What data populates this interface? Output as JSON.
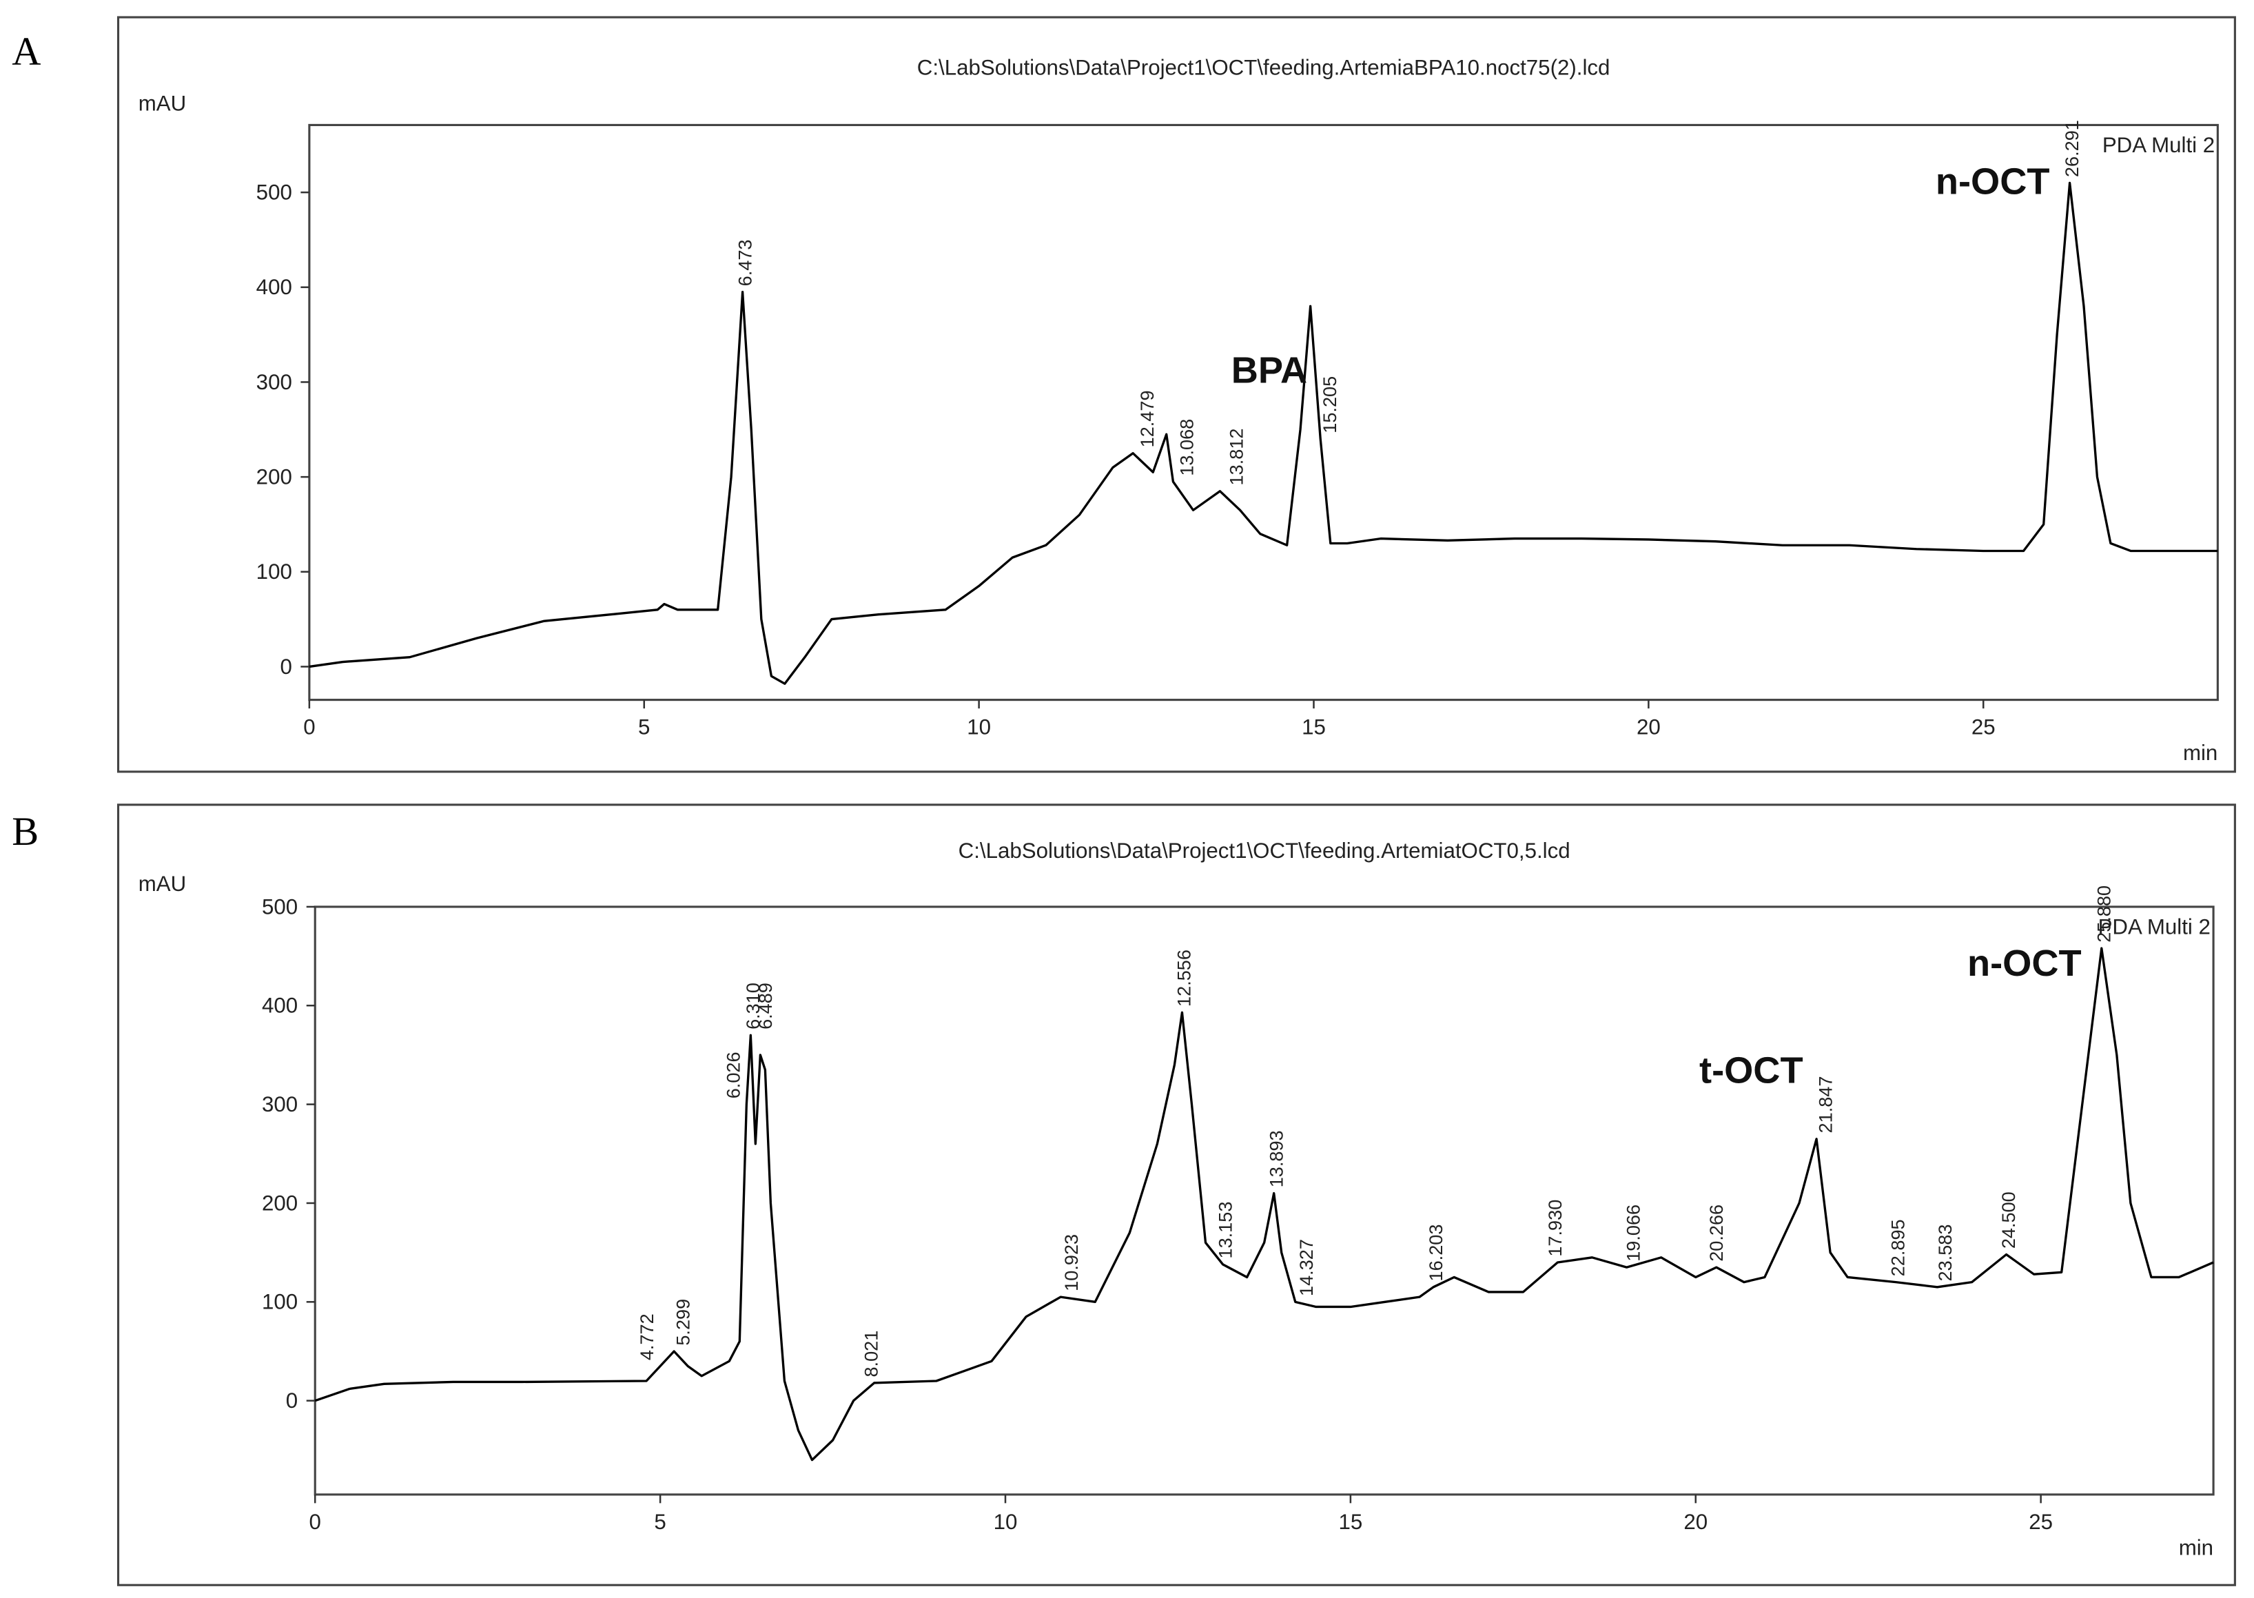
{
  "chart_data": [
    {
      "type": "line",
      "panel": "A",
      "title": "C:\\LabSolutions\\Data\\Project1\\OCT\\feeding.ArtemiaBPA10.noct75(2).lcd",
      "y_label": "mAU",
      "x_label": "min",
      "detector": "PDA Multi 2",
      "color": "#000000",
      "xlim": [
        0,
        28.5
      ],
      "ylim": [
        -35,
        571
      ],
      "xticks": [
        0,
        5,
        10,
        15,
        20,
        25
      ],
      "yticks": [
        0,
        100,
        200,
        300,
        400,
        500
      ],
      "x": [
        0,
        0.5,
        1.5,
        2.5,
        3.5,
        4.5,
        5.2,
        5.3,
        5.5,
        6.1,
        6.3,
        6.47,
        6.6,
        6.75,
        6.9,
        7.1,
        7.4,
        7.8,
        8.5,
        9.5,
        10,
        10.5,
        11,
        11.5,
        12,
        12.3,
        12.6,
        12.8,
        12.9,
        13.2,
        13.6,
        13.9,
        14.2,
        14.6,
        14.8,
        14.95,
        15.1,
        15.25,
        15.5,
        16,
        17,
        18,
        19,
        20,
        21,
        22,
        23,
        24,
        25,
        25.6,
        25.9,
        26.1,
        26.29,
        26.5,
        26.7,
        26.9,
        27.2,
        28.5
      ],
      "values": [
        0,
        5,
        10,
        30,
        48,
        55,
        60,
        66,
        60,
        60,
        200,
        395,
        250,
        50,
        -10,
        -18,
        10,
        50,
        55,
        60,
        85,
        115,
        128,
        160,
        210,
        225,
        205,
        245,
        195,
        165,
        185,
        165,
        140,
        128,
        250,
        380,
        240,
        130,
        130,
        135,
        133,
        135,
        135,
        134,
        132,
        128,
        128,
        124,
        122,
        122,
        150,
        350,
        510,
        380,
        200,
        130,
        122,
        122
      ],
      "peaks": [
        {
          "value": 6.473
        },
        {
          "value": 12.479
        },
        {
          "value": 13.068
        },
        {
          "value": 13.812
        },
        {
          "value": 15.205,
          "compound": "BPA"
        },
        {
          "value": 26.291,
          "compound": "n-OCT"
        }
      ]
    },
    {
      "type": "line",
      "panel": "B",
      "title": "C:\\LabSolutions\\Data\\Project1\\OCT\\feeding.ArtemiatOCT0,5.lcd",
      "y_label": "mAU",
      "x_label": "min",
      "detector": "PDA Multi 2",
      "color": "#000000",
      "xlim": [
        0,
        27.5
      ],
      "ylim": [
        -95,
        500
      ],
      "xticks": [
        0,
        5,
        10,
        15,
        20,
        25
      ],
      "yticks": [
        0,
        100,
        200,
        300,
        400,
        500
      ],
      "x": [
        0,
        0.5,
        1,
        2,
        3,
        4.8,
        5.0,
        5.2,
        5.4,
        5.6,
        6.0,
        6.15,
        6.25,
        6.31,
        6.38,
        6.45,
        6.52,
        6.6,
        6.8,
        7.0,
        7.2,
        7.5,
        7.8,
        8.1,
        9,
        9.8,
        10.3,
        10.8,
        11.3,
        11.8,
        12.2,
        12.45,
        12.56,
        12.7,
        12.9,
        13.15,
        13.5,
        13.75,
        13.89,
        14.0,
        14.2,
        14.5,
        15,
        15.5,
        16,
        16.2,
        16.5,
        17,
        17.5,
        18,
        18.5,
        19,
        19.5,
        20,
        20.3,
        20.7,
        21.0,
        21.5,
        21.75,
        21.95,
        22.2,
        22.9,
        23.5,
        24,
        24.5,
        24.9,
        25.3,
        25.6,
        25.88,
        26.1,
        26.3,
        26.6,
        27,
        27.5
      ],
      "values": [
        0,
        12,
        17,
        19,
        19,
        20,
        35,
        50,
        35,
        25,
        40,
        60,
        300,
        370,
        260,
        350,
        335,
        200,
        20,
        -30,
        -60,
        -40,
        0,
        18,
        20,
        40,
        85,
        105,
        100,
        170,
        260,
        340,
        393,
        300,
        160,
        138,
        125,
        160,
        210,
        150,
        100,
        95,
        95,
        100,
        105,
        115,
        125,
        110,
        110,
        140,
        145,
        135,
        145,
        125,
        135,
        120,
        125,
        200,
        265,
        150,
        125,
        120,
        115,
        120,
        148,
        128,
        130,
        300,
        458,
        350,
        200,
        125,
        125,
        140
      ],
      "peaks": [
        {
          "value": 4.772
        },
        {
          "value": 5.299
        },
        {
          "value": 6.026
        },
        {
          "value": 6.31,
          "label": "6.310"
        },
        {
          "value": 6.489
        },
        {
          "value": 8.021
        },
        {
          "value": 10.923
        },
        {
          "value": 12.556
        },
        {
          "value": 13.153
        },
        {
          "value": 13.893
        },
        {
          "value": 14.327
        },
        {
          "value": 16.203
        },
        {
          "value": 17.93,
          "label": "17.930"
        },
        {
          "value": 19.066
        },
        {
          "value": 20.266
        },
        {
          "value": 21.847,
          "compound": "t-OCT"
        },
        {
          "value": 22.895
        },
        {
          "value": 23.583
        },
        {
          "value": 24.5,
          "label": "24.500"
        },
        {
          "value": 25.88,
          "label": "25.880",
          "compound": "n-OCT"
        }
      ]
    }
  ]
}
